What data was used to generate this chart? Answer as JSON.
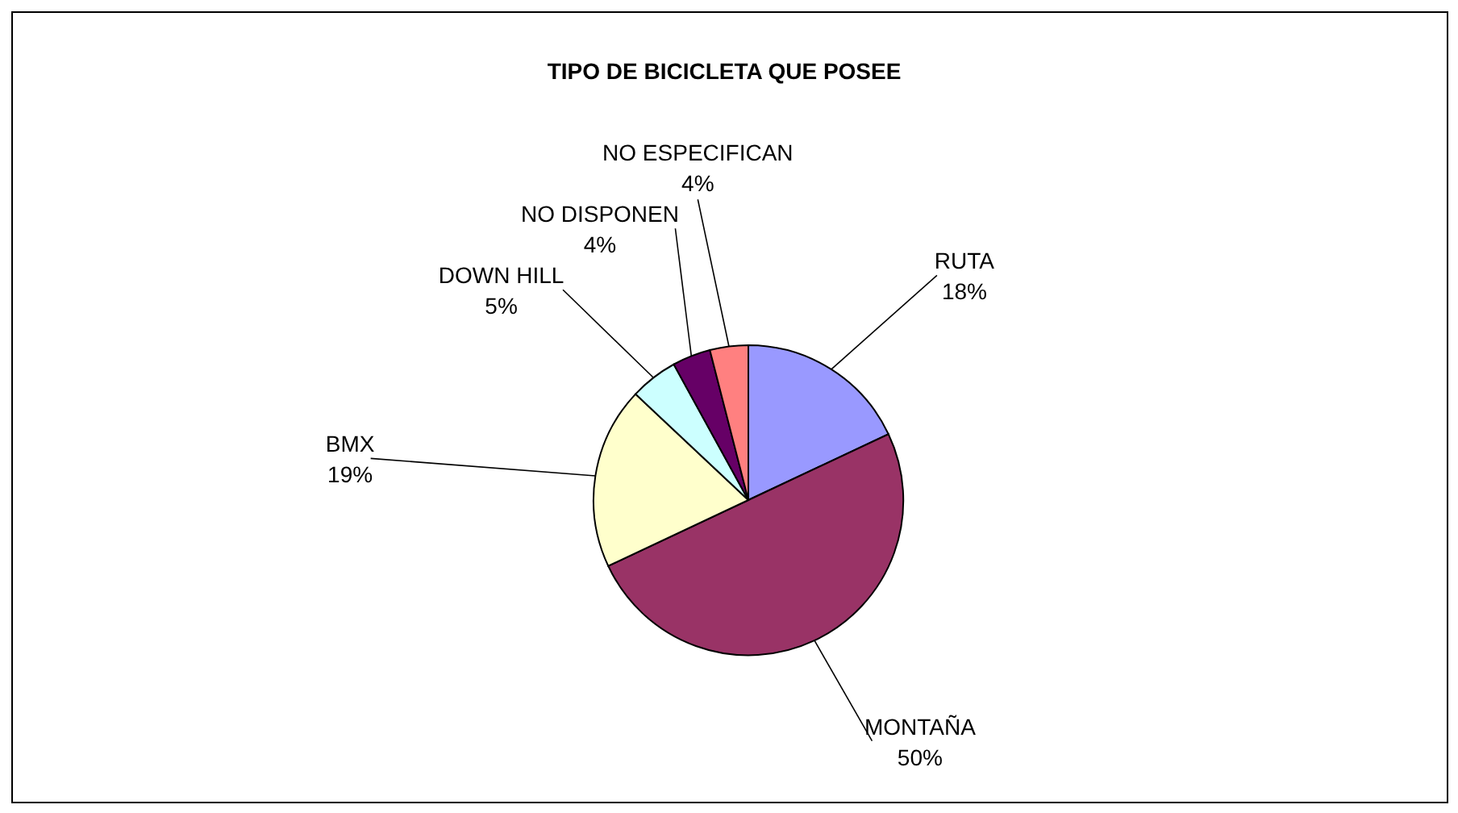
{
  "chart_data": {
    "type": "pie",
    "title": "TIPO DE BICICLETA QUE POSEE",
    "categories": [
      "RUTA",
      "MONTAÑA",
      "BMX",
      "DOWN HILL",
      "NO DISPONEN",
      "NO ESPECIFICAN"
    ],
    "values": [
      18,
      50,
      19,
      5,
      4,
      4
    ],
    "colors": [
      "#9999ff",
      "#993366",
      "#ffffcc",
      "#ccffff",
      "#660066",
      "#ff8080"
    ],
    "value_labels": [
      "18%",
      "50%",
      "19%",
      "5%",
      "4%",
      "4%"
    ]
  }
}
